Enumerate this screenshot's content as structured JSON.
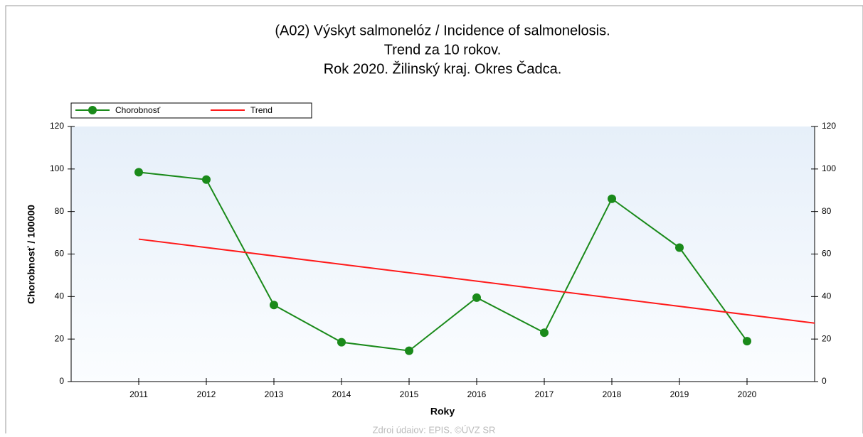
{
  "chart_data": {
    "type": "line",
    "title": [
      "(A02) Výskyt salmonelóz / Incidence of salmonelosis.",
      "Trend za 10 rokov.",
      "Rok 2020. Žilinský kraj. Okres Čadca."
    ],
    "x_label": "Roky",
    "y_label": "Chorobnosť / 100000",
    "source": "Zdroj údajov: EPIS, ©ÚVZ SR",
    "xlim": [
      2010,
      2021
    ],
    "xticks": [
      2011,
      2012,
      2013,
      2014,
      2015,
      2016,
      2017,
      2018,
      2019,
      2020
    ],
    "ylim": [
      0,
      120
    ],
    "yticks": [
      0,
      20,
      40,
      60,
      80,
      100,
      120
    ],
    "grid": false,
    "legend": "top-left",
    "series": [
      {
        "name": "Chorobnosť",
        "color": "#1a8a1a",
        "markers": true,
        "x": [
          2011,
          2012,
          2013,
          2014,
          2015,
          2016,
          2017,
          2018,
          2019,
          2020
        ],
        "values": [
          98.5,
          95,
          36,
          18.5,
          14.5,
          39.5,
          23,
          86,
          63,
          19
        ]
      },
      {
        "name": "Trend",
        "color": "#ff1a1a",
        "markers": false,
        "x": [
          2011,
          2021
        ],
        "values": [
          67,
          27.5
        ]
      }
    ]
  }
}
